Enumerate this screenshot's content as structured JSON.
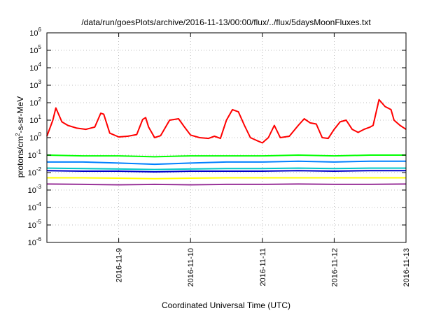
{
  "chart_data": {
    "type": "line",
    "title": "/data/run/goesPlots/archive/2016-11-13/00:00/flux/../flux/5daysMoonFluxes.txt",
    "xlabel": "Coordinated Universal Time (UTC)",
    "ylabel": {
      "base": "protons/cm",
      "sup": "2",
      "rest": "-s-sr-MeV"
    },
    "y_scale": "log",
    "ylim_exponent": [
      -6,
      6
    ],
    "y_tick_exponents": [
      -6,
      -5,
      -4,
      -3,
      -2,
      -1,
      0,
      1,
      2,
      3,
      4,
      5,
      6
    ],
    "xlim": [
      "2016-11-08",
      "2016-11-13"
    ],
    "x_ticks": [
      "2016-11-9",
      "2016-11-10",
      "2016-11-11",
      "2016-11-12",
      "2016-11-13"
    ],
    "x_tick_dates": [
      "2016-11-09",
      "2016-11-10",
      "2016-11-11",
      "2016-11-12",
      "2016-11-13"
    ],
    "grid": true,
    "series": [
      {
        "color": "#ff0000",
        "x": [
          "2016-11-08T00:00",
          "2016-11-08T02:00",
          "2016-11-08T03:00",
          "2016-11-08T05:00",
          "2016-11-08T07:00",
          "2016-11-08T10:00",
          "2016-11-08T13:00",
          "2016-11-08T16:00",
          "2016-11-08T18:00",
          "2016-11-08T19:00",
          "2016-11-08T21:00",
          "2016-11-09T00:00",
          "2016-11-09T03:00",
          "2016-11-09T06:00",
          "2016-11-09T08:00",
          "2016-11-09T09:00",
          "2016-11-09T10:00",
          "2016-11-09T12:00",
          "2016-11-09T14:00",
          "2016-11-09T17:00",
          "2016-11-09T20:00",
          "2016-11-09T22:00",
          "2016-11-10T00:00",
          "2016-11-10T03:00",
          "2016-11-10T06:00",
          "2016-11-10T08:00",
          "2016-11-10T10:00",
          "2016-11-10T12:00",
          "2016-11-10T14:00",
          "2016-11-10T16:00",
          "2016-11-10T18:00",
          "2016-11-10T20:00",
          "2016-11-10T22:00",
          "2016-11-11T00:00",
          "2016-11-11T02:00",
          "2016-11-11T04:00",
          "2016-11-11T06:00",
          "2016-11-11T09:00",
          "2016-11-11T12:00",
          "2016-11-11T14:00",
          "2016-11-11T16:00",
          "2016-11-11T18:00",
          "2016-11-11T20:00",
          "2016-11-11T22:00",
          "2016-11-12T00:00",
          "2016-11-12T02:00",
          "2016-11-12T04:00",
          "2016-11-12T06:00",
          "2016-11-12T08:00",
          "2016-11-12T10:00",
          "2016-11-12T12:00",
          "2016-11-12T13:00",
          "2016-11-12T15:00",
          "2016-11-12T17:00",
          "2016-11-12T19:00",
          "2016-11-12T20:00",
          "2016-11-12T22:00",
          "2016-11-13T00:00"
        ],
        "y": [
          1.2,
          10,
          50,
          8,
          5,
          3.5,
          3,
          4,
          25,
          22,
          1.8,
          1.1,
          1.2,
          1.5,
          11,
          14,
          4,
          1.0,
          1.3,
          10,
          12,
          4,
          1.4,
          1.0,
          0.9,
          1.2,
          0.9,
          10,
          40,
          30,
          5,
          1.0,
          0.7,
          0.5,
          1.0,
          5,
          1.0,
          1.2,
          5,
          12,
          7,
          6,
          1.0,
          0.9,
          3,
          8,
          10,
          3,
          2,
          3,
          4,
          5,
          150,
          60,
          40,
          10,
          5,
          3
        ]
      },
      {
        "color": "#00ff00",
        "x": [
          "2016-11-08T00:00",
          "2016-11-08T12:00",
          "2016-11-09T00:00",
          "2016-11-09T12:00",
          "2016-11-10T00:00",
          "2016-11-10T12:00",
          "2016-11-11T00:00",
          "2016-11-11T12:00",
          "2016-11-12T00:00",
          "2016-11-12T12:00",
          "2016-11-13T00:00"
        ],
        "y": [
          0.1,
          0.09,
          0.09,
          0.08,
          0.09,
          0.09,
          0.09,
          0.1,
          0.09,
          0.1,
          0.1
        ]
      },
      {
        "color": "#0080ff",
        "x": [
          "2016-11-08T00:00",
          "2016-11-08T12:00",
          "2016-11-09T00:00",
          "2016-11-09T12:00",
          "2016-11-10T00:00",
          "2016-11-10T12:00",
          "2016-11-11T00:00",
          "2016-11-11T12:00",
          "2016-11-12T00:00",
          "2016-11-12T12:00",
          "2016-11-13T00:00"
        ],
        "y": [
          0.04,
          0.04,
          0.035,
          0.03,
          0.035,
          0.04,
          0.04,
          0.045,
          0.04,
          0.045,
          0.045
        ]
      },
      {
        "color": "#00c8c8",
        "x": [
          "2016-11-08T00:00",
          "2016-11-08T12:00",
          "2016-11-09T00:00",
          "2016-11-09T12:00",
          "2016-11-10T00:00",
          "2016-11-10T12:00",
          "2016-11-11T00:00",
          "2016-11-11T12:00",
          "2016-11-12T00:00",
          "2016-11-12T12:00",
          "2016-11-13T00:00"
        ],
        "y": [
          0.018,
          0.017,
          0.016,
          0.015,
          0.016,
          0.017,
          0.017,
          0.018,
          0.017,
          0.018,
          0.018
        ]
      },
      {
        "color": "#0000cc",
        "x": [
          "2016-11-08T00:00",
          "2016-11-08T12:00",
          "2016-11-09T00:00",
          "2016-11-09T12:00",
          "2016-11-10T00:00",
          "2016-11-10T12:00",
          "2016-11-11T00:00",
          "2016-11-11T12:00",
          "2016-11-12T00:00",
          "2016-11-12T12:00",
          "2016-11-13T00:00"
        ],
        "y": [
          0.013,
          0.012,
          0.012,
          0.011,
          0.012,
          0.012,
          0.012,
          0.013,
          0.012,
          0.013,
          0.013
        ]
      },
      {
        "color": "#ffff00",
        "x": [
          "2016-11-08T00:00",
          "2016-11-08T12:00",
          "2016-11-09T00:00",
          "2016-11-09T12:00",
          "2016-11-10T00:00",
          "2016-11-10T12:00",
          "2016-11-11T00:00",
          "2016-11-11T12:00",
          "2016-11-12T00:00",
          "2016-11-12T12:00",
          "2016-11-13T00:00"
        ],
        "y": [
          0.005,
          0.005,
          0.0048,
          0.0045,
          0.0048,
          0.005,
          0.005,
          0.005,
          0.005,
          0.005,
          0.005
        ]
      },
      {
        "color": "#993399",
        "x": [
          "2016-11-08T00:00",
          "2016-11-08T12:00",
          "2016-11-09T00:00",
          "2016-11-09T12:00",
          "2016-11-10T00:00",
          "2016-11-10T12:00",
          "2016-11-11T00:00",
          "2016-11-11T12:00",
          "2016-11-12T00:00",
          "2016-11-12T12:00",
          "2016-11-13T00:00"
        ],
        "y": [
          0.0022,
          0.0021,
          0.002,
          0.0021,
          0.002,
          0.0021,
          0.0021,
          0.0022,
          0.0021,
          0.0021,
          0.0022
        ]
      }
    ]
  }
}
